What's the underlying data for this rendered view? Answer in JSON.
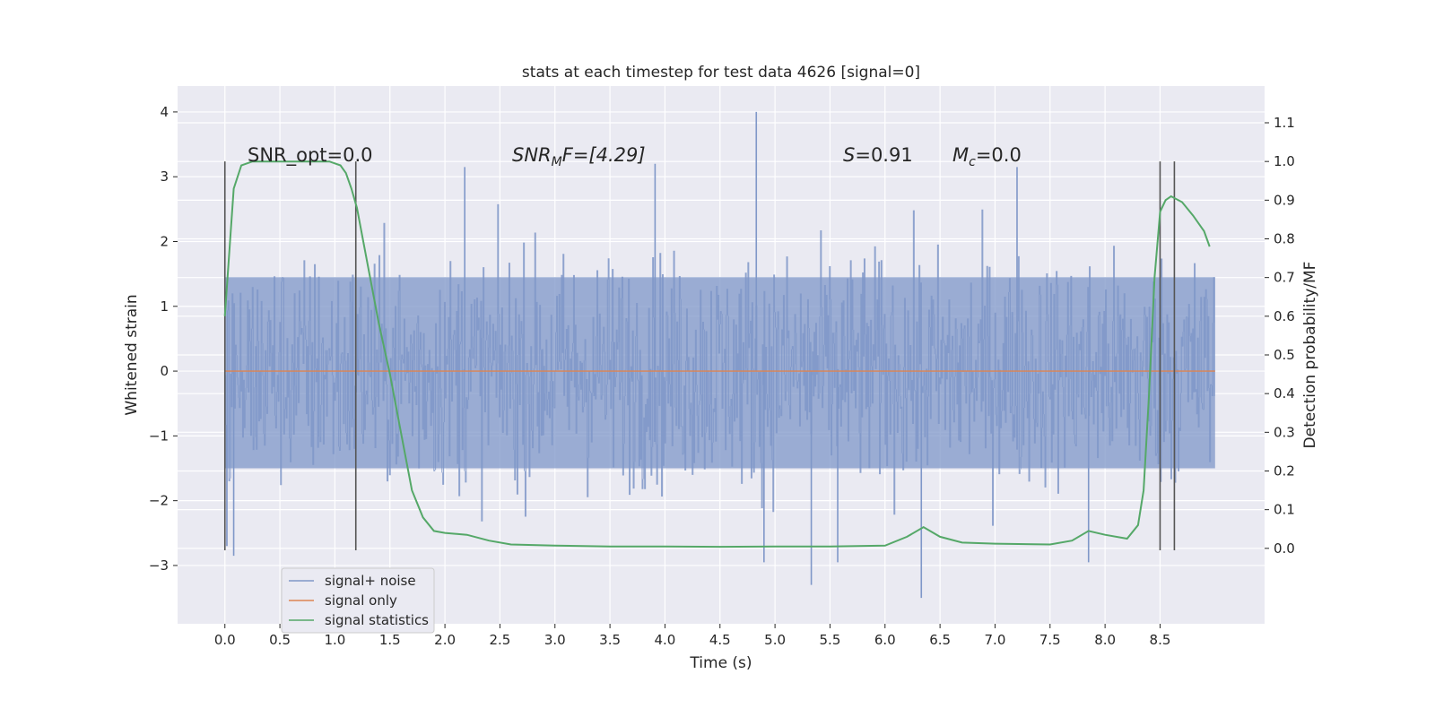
{
  "chart_data": {
    "type": "line",
    "title": "stats at each timestep for test data 4626 [signal=0]",
    "xlabel": "Time (s)",
    "ylabel_left": "Whitened strain",
    "ylabel_right": "Detection probability/MF",
    "xlim": [
      -0.43,
      9.45
    ],
    "ylim_left": [
      -3.9,
      4.4
    ],
    "ylim_right": [
      -0.195,
      1.195
    ],
    "x_ticks": [
      "0.0",
      "0.5",
      "1.0",
      "1.5",
      "2.0",
      "2.5",
      "3.0",
      "3.5",
      "4.0",
      "4.5",
      "5.0",
      "5.5",
      "6.0",
      "6.5",
      "7.0",
      "7.5",
      "8.0",
      "8.5"
    ],
    "y_ticks_left": [
      "−3",
      "−2",
      "−1",
      "0",
      "1",
      "2",
      "3",
      "4"
    ],
    "y_ticks_right": [
      "0.0",
      "0.1",
      "0.2",
      "0.3",
      "0.4",
      "0.5",
      "0.6",
      "0.7",
      "0.8",
      "0.9",
      "1.0",
      "1.1"
    ],
    "annotations": {
      "snr_opt": "SNR_opt=0.0",
      "snr_mf_base": "SNR",
      "snr_mf_sub": "M",
      "snr_mf_rest": "F=[4.29]",
      "s_var": "S",
      "s_rest": "=0.91",
      "mc_var": "M",
      "mc_sub": "c",
      "mc_rest": "=0.0"
    },
    "legend": [
      "signal+ noise",
      "signal only",
      "signal statistics"
    ],
    "colors": {
      "noise": "#7f97c8",
      "signal": "#dd8452",
      "stats": "#55a868",
      "vline": "#555555",
      "bg": "#eaeaf2",
      "grid": "#ffffff"
    },
    "vlines": [
      0.0,
      1.19,
      8.5,
      8.63
    ],
    "vline_range": [
      -0.005,
      1.0
    ],
    "series": [
      {
        "name": "signal+ noise",
        "x_range": [
          0.0,
          9.0
        ],
        "band_low": -1.5,
        "band_high": 1.45,
        "spikes": [
          [
            4.83,
            4.0
          ],
          [
            5.33,
            -3.3
          ],
          [
            6.33,
            -3.5
          ],
          [
            4.9,
            -2.95
          ],
          [
            3.91,
            3.2
          ],
          [
            2.18,
            3.15
          ],
          [
            7.2,
            3.15
          ],
          [
            5.57,
            -2.95
          ],
          [
            7.85,
            -2.95
          ],
          [
            0.08,
            -2.85
          ]
        ]
      },
      {
        "name": "signal only",
        "x": [
          0.0,
          9.0
        ],
        "y": [
          0.0,
          0.0
        ]
      },
      {
        "name": "signal statistics",
        "x": [
          0.0,
          0.08,
          0.15,
          0.25,
          0.5,
          0.8,
          0.95,
          1.05,
          1.1,
          1.15,
          1.2,
          1.3,
          1.4,
          1.5,
          1.6,
          1.7,
          1.8,
          1.9,
          2.0,
          2.2,
          2.4,
          2.6,
          3.0,
          3.5,
          4.0,
          4.5,
          5.0,
          5.5,
          6.0,
          6.2,
          6.35,
          6.5,
          6.7,
          7.0,
          7.5,
          7.7,
          7.85,
          8.0,
          8.2,
          8.3,
          8.35,
          8.4,
          8.45,
          8.5,
          8.55,
          8.6,
          8.7,
          8.8,
          8.9,
          8.95
        ],
        "y": [
          0.6,
          0.93,
          0.99,
          1.0,
          1.0,
          1.0,
          1.0,
          0.99,
          0.97,
          0.93,
          0.88,
          0.73,
          0.58,
          0.45,
          0.3,
          0.15,
          0.08,
          0.045,
          0.04,
          0.035,
          0.02,
          0.01,
          0.007,
          0.005,
          0.005,
          0.004,
          0.005,
          0.005,
          0.007,
          0.03,
          0.055,
          0.03,
          0.015,
          0.012,
          0.01,
          0.02,
          0.045,
          0.035,
          0.025,
          0.06,
          0.15,
          0.4,
          0.7,
          0.87,
          0.9,
          0.91,
          0.895,
          0.86,
          0.82,
          0.78
        ]
      }
    ]
  }
}
